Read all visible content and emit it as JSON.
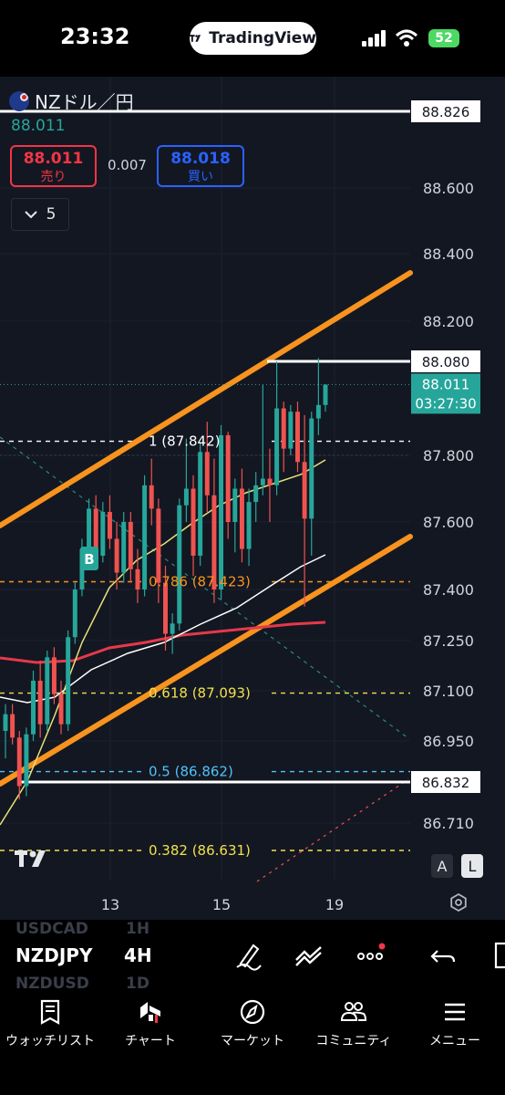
{
  "status": {
    "time": "23:32",
    "app_pill": "TradingView",
    "battery": "52"
  },
  "symbol": {
    "name": "NZドル／円",
    "last": "88.011",
    "sell_price": "88.011",
    "sell_label": "売り",
    "spread": "0.007",
    "buy_price": "88.018",
    "buy_label": "買い",
    "interval_count": "5"
  },
  "price_axis": {
    "ticks": [
      "88.600",
      "88.400",
      "88.200",
      "87.800",
      "87.600",
      "87.400",
      "87.250",
      "87.100",
      "86.950",
      "86.710"
    ],
    "badges": {
      "top": "88.826",
      "mid": "88.080",
      "current": "88.011",
      "countdown": "03:27:30",
      "bottom": "86.832"
    }
  },
  "time_axis": {
    "labels": [
      "13",
      "15",
      "19"
    ]
  },
  "fib": {
    "f1": "1 (87.842)",
    "f786": "0.786 (87.423)",
    "f618": "0.618 (87.093)",
    "f5": "0.5 (86.862)",
    "f382": "0.382 (86.631)"
  },
  "marker": {
    "b": "B"
  },
  "scale_buttons": {
    "auto": "A",
    "log": "L"
  },
  "toolbar": {
    "symbol": "NZDJPY",
    "interval": "4H",
    "ghost_above": "USDCAD",
    "ghost_above_tf": "1H",
    "ghost_below": "NZDUSD",
    "ghost_below_tf": "1D"
  },
  "nav": [
    {
      "label": "ウォッチリスト",
      "icon": "watchlist-icon"
    },
    {
      "label": "チャート",
      "icon": "chart-icon"
    },
    {
      "label": "マーケット",
      "icon": "compass-icon"
    },
    {
      "label": "コミュニティ",
      "icon": "community-icon"
    },
    {
      "label": "メニュー",
      "icon": "menu-icon"
    }
  ],
  "colors": {
    "background": "#131722",
    "up": "#26a69a",
    "down": "#ef5350",
    "channel": "#f7931e",
    "fib_orange": "#f7931e",
    "fib_yellow": "#f2e14c",
    "fib_blue": "#4fc3f7",
    "ma_red": "#e5394a",
    "ma_yellow": "#e8e07a"
  },
  "chart_data": {
    "type": "candlestick",
    "y_axis_ticks": [
      86.71,
      86.95,
      87.1,
      87.25,
      87.4,
      87.6,
      87.8,
      88.2,
      88.4,
      88.6
    ],
    "x_axis_ticks": [
      "13",
      "15",
      "19"
    ],
    "fib_levels": [
      {
        "ratio": 1,
        "price": 87.842
      },
      {
        "ratio": 0.786,
        "price": 87.423
      },
      {
        "ratio": 0.618,
        "price": 87.093
      },
      {
        "ratio": 0.5,
        "price": 86.862
      },
      {
        "ratio": 0.382,
        "price": 86.631
      }
    ],
    "horizontal_lines": [
      88.826,
      88.08,
      86.832
    ],
    "last_price": 88.011,
    "candles": [
      [
        86.98,
        87.06,
        86.9,
        87.03
      ],
      [
        87.03,
        87.06,
        86.94,
        86.96
      ],
      [
        86.96,
        86.98,
        86.78,
        86.82
      ],
      [
        86.82,
        86.99,
        86.79,
        86.97
      ],
      [
        86.97,
        87.16,
        86.95,
        87.13
      ],
      [
        87.13,
        87.19,
        86.96,
        87.0
      ],
      [
        87.0,
        87.22,
        86.98,
        87.2
      ],
      [
        87.2,
        87.23,
        87.06,
        87.09
      ],
      [
        87.09,
        87.13,
        86.97,
        87.0
      ],
      [
        87.0,
        87.28,
        86.98,
        87.26
      ],
      [
        87.26,
        87.42,
        87.24,
        87.4
      ],
      [
        87.4,
        87.55,
        87.38,
        87.52
      ],
      [
        87.52,
        87.67,
        87.5,
        87.64
      ],
      [
        87.64,
        87.68,
        87.46,
        87.5
      ],
      [
        87.5,
        87.66,
        87.48,
        87.63
      ],
      [
        87.63,
        87.68,
        87.52,
        87.55
      ],
      [
        87.55,
        87.6,
        87.4,
        87.45
      ],
      [
        87.45,
        87.63,
        87.42,
        87.6
      ],
      [
        87.6,
        87.63,
        87.42,
        87.46
      ],
      [
        87.46,
        87.52,
        87.36,
        87.4
      ],
      [
        87.4,
        87.74,
        87.38,
        87.71
      ],
      [
        87.71,
        87.79,
        87.59,
        87.64
      ],
      [
        87.64,
        87.67,
        87.36,
        87.42
      ],
      [
        87.42,
        87.47,
        87.22,
        87.27
      ],
      [
        87.27,
        87.33,
        87.21,
        87.3
      ],
      [
        87.3,
        87.67,
        87.28,
        87.65
      ],
      [
        87.65,
        87.85,
        87.6,
        87.7
      ],
      [
        87.7,
        87.74,
        87.44,
        87.5
      ],
      [
        87.5,
        87.84,
        87.47,
        87.81
      ],
      [
        87.81,
        87.9,
        87.63,
        87.68
      ],
      [
        87.68,
        87.79,
        87.36,
        87.4
      ],
      [
        87.4,
        87.89,
        87.37,
        87.86
      ],
      [
        87.86,
        87.87,
        87.55,
        87.6
      ],
      [
        87.6,
        87.73,
        87.51,
        87.7
      ],
      [
        87.7,
        87.76,
        87.48,
        87.52
      ],
      [
        87.52,
        87.7,
        87.47,
        87.66
      ],
      [
        87.66,
        87.75,
        87.6,
        87.71
      ],
      [
        87.71,
        88.01,
        87.68,
        87.73
      ],
      [
        87.73,
        87.82,
        87.6,
        87.71
      ],
      [
        87.71,
        88.08,
        87.68,
        87.94
      ],
      [
        87.94,
        87.96,
        87.75,
        87.82
      ],
      [
        87.82,
        87.95,
        87.8,
        87.93
      ],
      [
        87.93,
        87.96,
        87.75,
        87.78
      ],
      [
        87.78,
        87.92,
        87.35,
        87.61
      ],
      [
        87.61,
        87.93,
        87.5,
        87.91
      ],
      [
        87.91,
        88.09,
        87.86,
        87.95
      ],
      [
        87.95,
        88.01,
        87.93,
        88.011
      ]
    ]
  }
}
